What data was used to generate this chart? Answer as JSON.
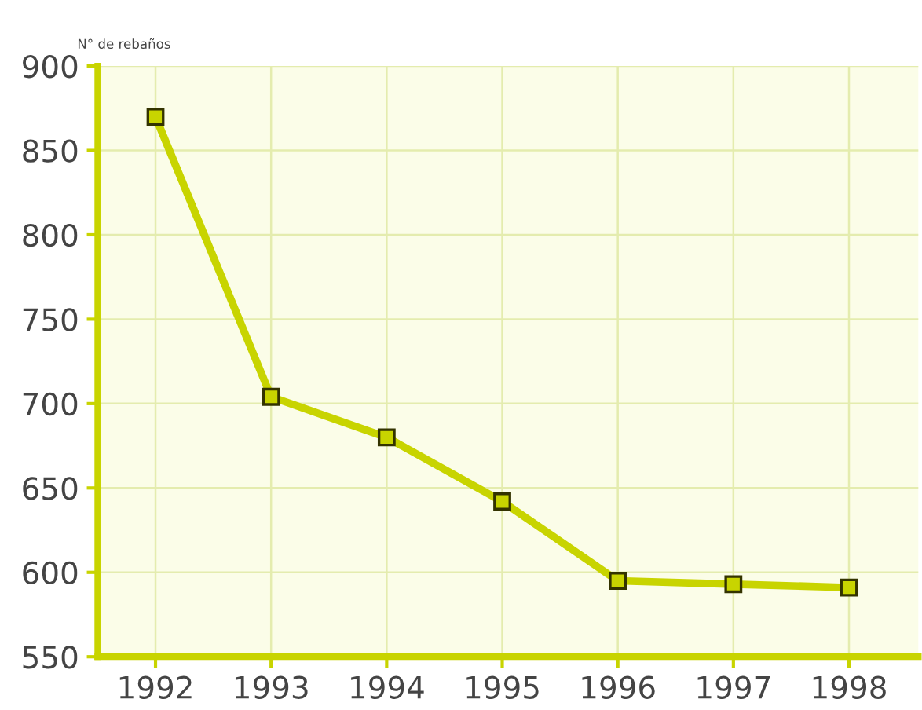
{
  "chart_data": {
    "type": "line",
    "ylabel": "N° de rebaños",
    "categories": [
      "1992",
      "1993",
      "1994",
      "1995",
      "1996",
      "1997",
      "1998"
    ],
    "series": [
      {
        "color": "#c8d400",
        "values": [
          870,
          704,
          680,
          642,
          595,
          593,
          591
        ]
      }
    ],
    "ylim": [
      550,
      900
    ],
    "yticks": [
      550,
      600,
      650,
      700,
      750,
      800,
      850,
      900
    ],
    "grid": true,
    "marker": "square",
    "line_style": "solid"
  }
}
